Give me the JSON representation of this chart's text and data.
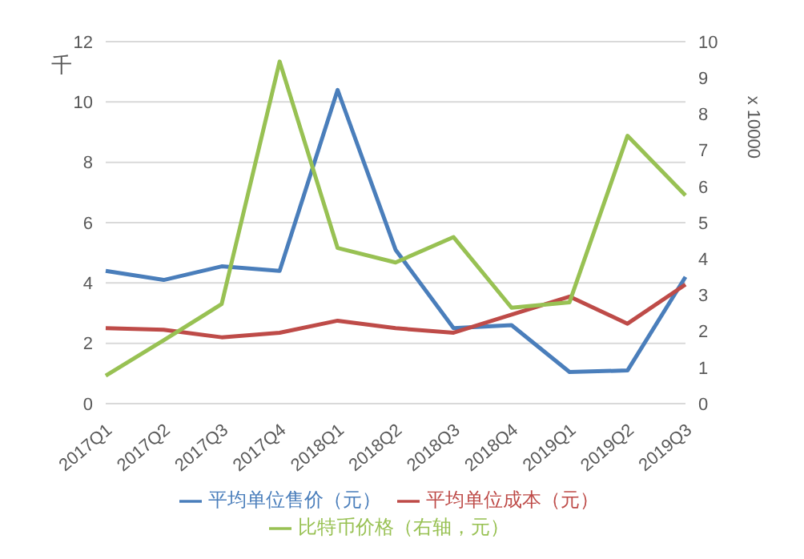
{
  "chart_data": {
    "type": "line",
    "ylabel": "千",
    "y2label": "x 10000",
    "categories": [
      "2017Q1",
      "2017Q2",
      "2017Q3",
      "2017Q4",
      "2018Q1",
      "2018Q2",
      "2018Q3",
      "2018Q4",
      "2019Q1",
      "2019Q2",
      "2019Q3"
    ],
    "series": [
      {
        "name": "平均单位售价（元）",
        "color": "#4a7ebb",
        "values": [
          4.4,
          4.1,
          4.55,
          4.4,
          10.4,
          5.1,
          2.5,
          2.6,
          1.05,
          1.1,
          4.2
        ]
      },
      {
        "name": "平均单位成本（元）",
        "color": "#be4b48",
        "values": [
          2.5,
          2.45,
          2.2,
          2.35,
          2.75,
          2.5,
          2.35,
          2.95,
          3.55,
          2.65,
          3.95
        ]
      },
      {
        "name": "比特币价格（右轴，元）",
        "color": "#98c153",
        "axis": "y2",
        "values": [
          0.77,
          1.75,
          2.75,
          9.45,
          4.3,
          3.9,
          4.6,
          2.65,
          2.8,
          7.4,
          5.75
        ]
      }
    ],
    "ylim": [
      0,
      12
    ],
    "yticks": [
      0,
      2,
      4,
      6,
      8,
      10,
      12
    ],
    "y2lim": [
      0,
      10
    ],
    "y2ticks": [
      0,
      1,
      2,
      3,
      4,
      5,
      6,
      7,
      8,
      9,
      10
    ],
    "grid": "y",
    "legend": "bottom",
    "marker": "none",
    "line_style": "solid"
  }
}
